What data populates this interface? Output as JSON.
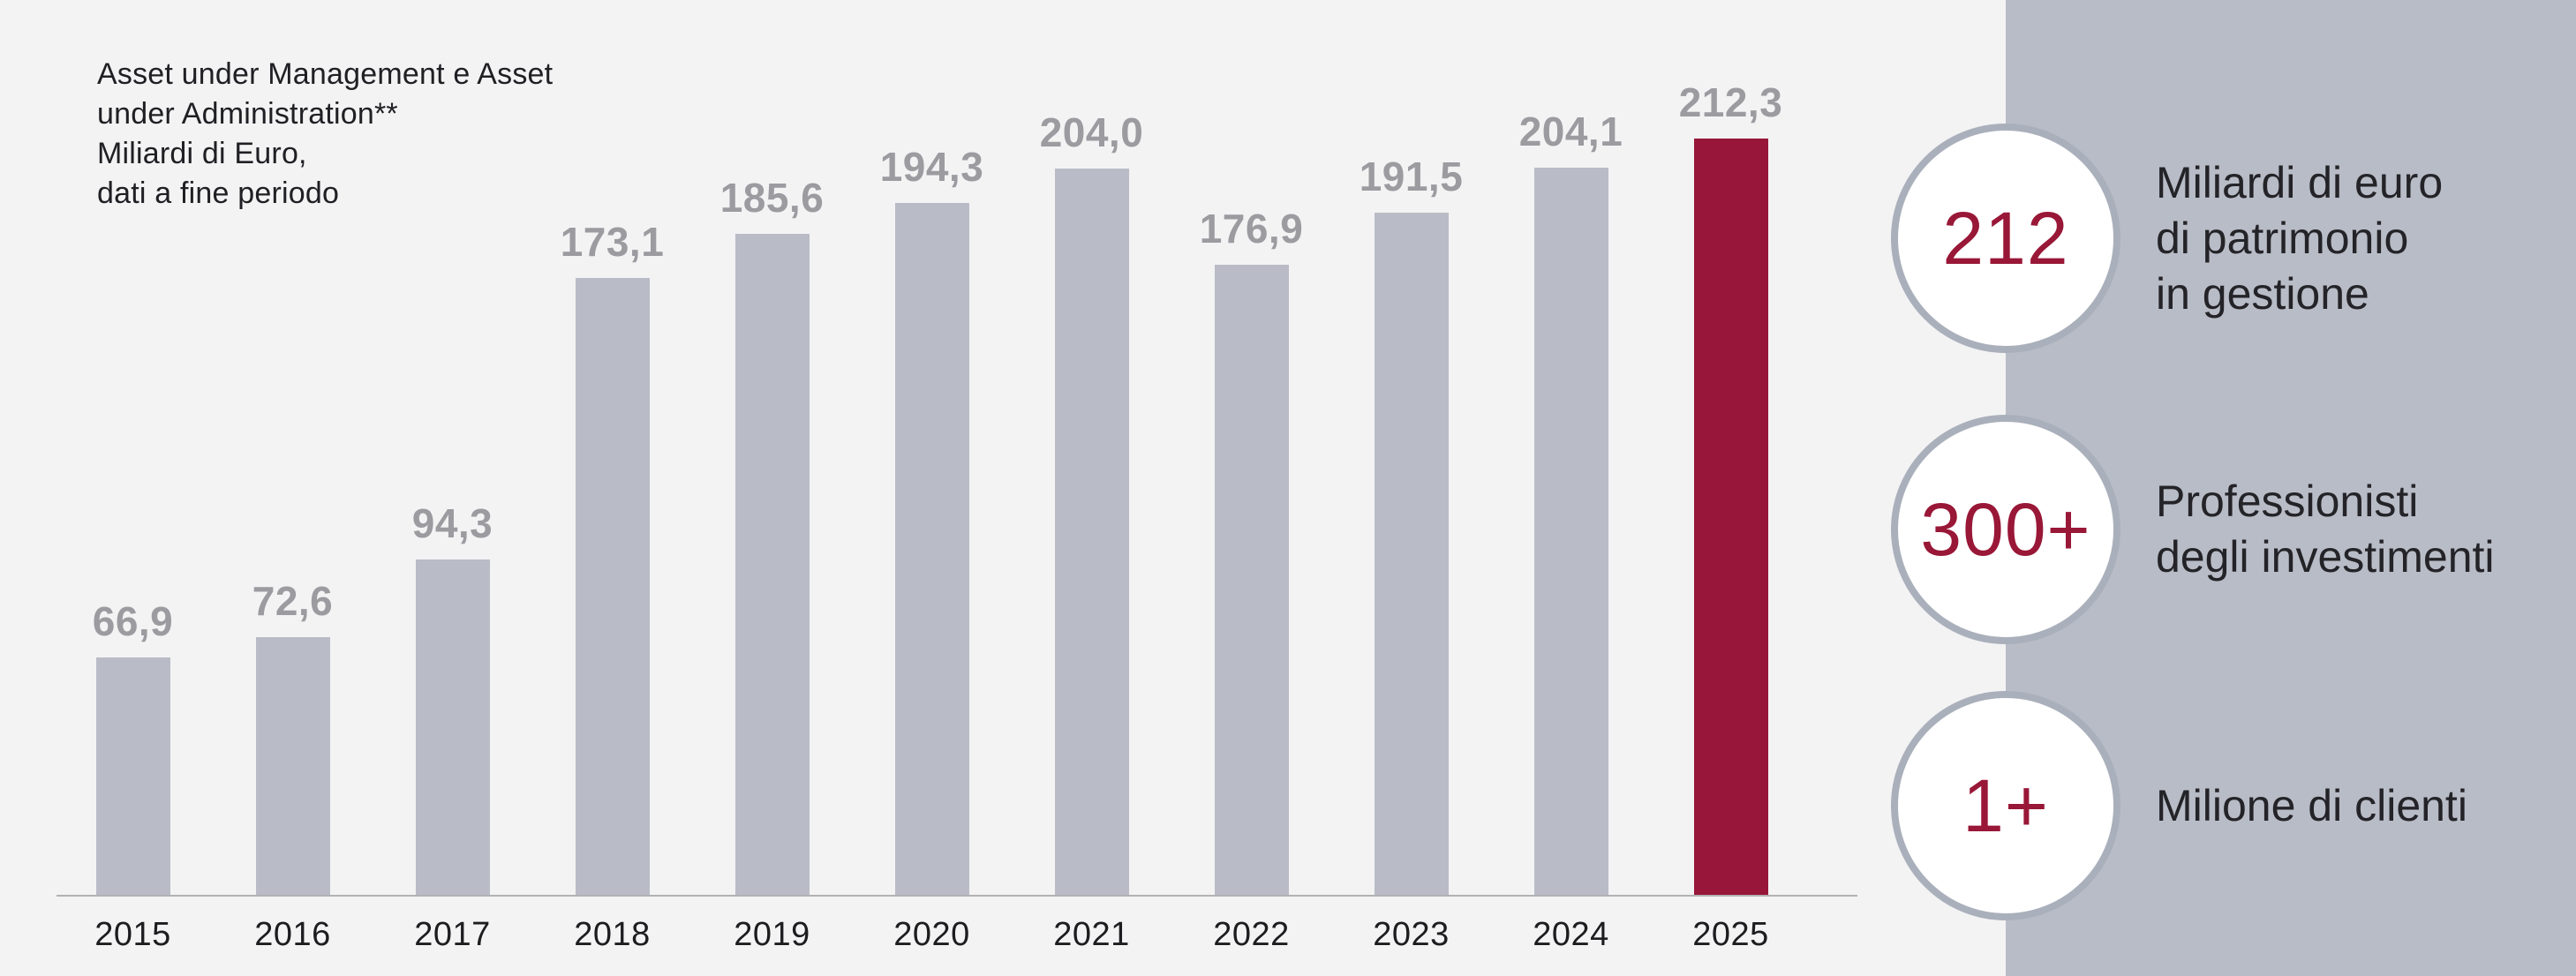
{
  "background": "#f3f3f4",
  "chart_data": {
    "type": "bar",
    "title": "Asset under Management e Asset under Administration** Miliardi di Euro, dati a fine periodo",
    "title_lines": [
      "Asset under Management e Asset",
      "under Administration**",
      "Miliardi di Euro,",
      "dati a fine periodo"
    ],
    "categories": [
      "2015",
      "2016",
      "2017",
      "2018",
      "2019",
      "2020",
      "2021",
      "2022",
      "2023",
      "2024",
      "2025"
    ],
    "values": [
      66.9,
      72.6,
      94.3,
      173.1,
      185.6,
      194.3,
      204.0,
      176.9,
      191.5,
      204.1,
      212.3
    ],
    "value_labels": [
      "66,9",
      "72,6",
      "94,3",
      "173,1",
      "185,6",
      "194,3",
      "204,0",
      "176,9",
      "191,5",
      "204,1",
      "212,3"
    ],
    "highlight_index": 10,
    "bar_color": "#b9bcc6",
    "highlight_color": "#971639",
    "value_label_color": "#9b9ba0",
    "xlabel": "",
    "ylabel": "",
    "ylim": [
      0,
      212.3
    ],
    "grid": false,
    "legend": "none"
  },
  "side_panel": {
    "bg_color": "#b8bcc6",
    "number_color": "#991737",
    "badges": [
      {
        "value": "212",
        "label": "Miliardi di euro\ndi patrimonio\nin gestione"
      },
      {
        "value": "300+",
        "label": "Professionisti\ndegli investimenti"
      },
      {
        "value": "1+",
        "label": "Milione di clienti"
      }
    ]
  }
}
